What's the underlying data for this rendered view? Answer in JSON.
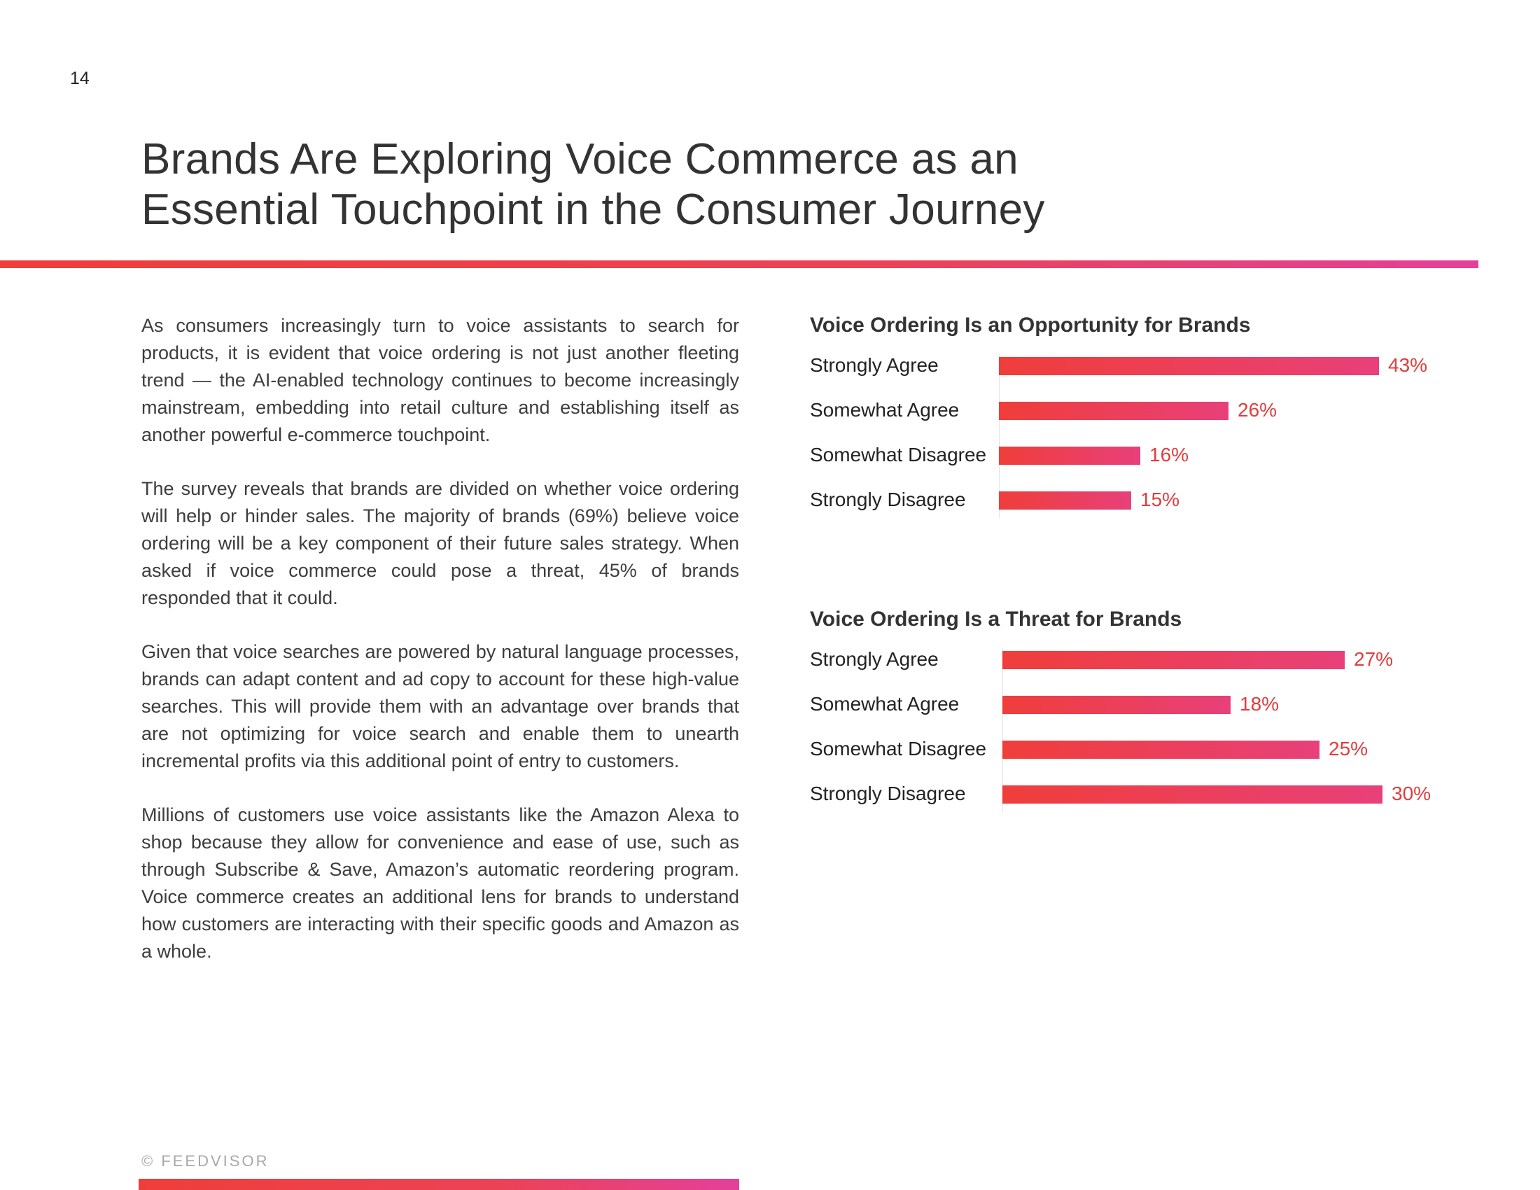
{
  "page_number": "14",
  "title": {
    "line1": "Brands Are Exploring Voice Commerce as an",
    "line2": "Essential Touchpoint in the Consumer Journey"
  },
  "paragraphs": [
    "As consumers increasingly turn to voice assistants to search for products, it is evident that voice ordering is not just another fleeting trend — the AI-enabled technology continues to become increasingly mainstream, embedding into retail culture and establishing itself as another powerful e-commerce touchpoint.",
    "The survey reveals that brands are divided on whether voice ordering will help or hinder sales. The majority of brands (69%) believe voice ordering will be a key component of their future sales strategy. When asked if voice commerce could pose a threat, 45% of brands responded that it could.",
    "Given that voice searches are powered by natural language processes, brands can adapt content and ad copy to account for these high-value searches. This will provide them with an advantage over brands that are not optimizing for voice search and enable them to unearth incremental profits via this additional point of entry to customers.",
    "Millions of customers use voice assistants like the Amazon Alexa to shop because they allow for convenience and ease of use, such as through Subscribe & Save, Amazon’s automatic reordering program. Voice commerce creates an additional lens for brands to understand how customers are interacting with their specific goods and Amazon as a whole."
  ],
  "footer": {
    "copyright": "© FEEDVISOR"
  },
  "colors": {
    "accent_start": "#ef3e3a",
    "accent_end": "#e4409a",
    "value_text": "#e23c3c"
  },
  "chart_data": [
    {
      "type": "bar",
      "orientation": "horizontal",
      "title": "Voice Ordering Is an Opportunity for Brands",
      "categories": [
        "Strongly Agree",
        "Somewhat Agree",
        "Somewhat Disagree",
        "Strongly Disagree"
      ],
      "values": [
        43,
        26,
        16,
        15
      ],
      "value_labels": [
        "43%",
        "26%",
        "16%",
        "15%"
      ],
      "unit": "%",
      "xlim": [
        0,
        43
      ]
    },
    {
      "type": "bar",
      "orientation": "horizontal",
      "title": "Voice Ordering Is a Threat for Brands",
      "categories": [
        "Strongly Agree",
        "Somewhat Agree",
        "Somewhat Disagree",
        "Strongly Disagree"
      ],
      "values": [
        27,
        18,
        25,
        30
      ],
      "value_labels": [
        "27%",
        "18%",
        "25%",
        "30%"
      ],
      "unit": "%",
      "xlim": [
        0,
        30
      ]
    }
  ]
}
